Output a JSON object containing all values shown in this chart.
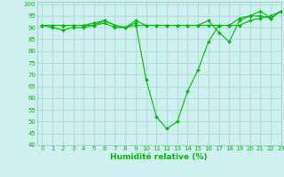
{
  "title": "",
  "xlabel": "Humidité relative (%)",
  "ylabel": "",
  "bg_color": "#cff0f0",
  "grid_color": "#aad8d8",
  "line_color": "#00bb00",
  "marker_color": "#00bb00",
  "xlim": [
    -0.5,
    23
  ],
  "ylim": [
    40,
    101
  ],
  "yticks": [
    40,
    45,
    50,
    55,
    60,
    65,
    70,
    75,
    80,
    85,
    90,
    95,
    100
  ],
  "xticks": [
    0,
    1,
    2,
    3,
    4,
    5,
    6,
    7,
    8,
    9,
    10,
    11,
    12,
    13,
    14,
    15,
    16,
    17,
    18,
    19,
    20,
    21,
    22,
    23
  ],
  "series": [
    [
      91,
      90,
      89,
      90,
      90,
      91,
      92,
      90,
      90,
      91,
      91,
      91,
      91,
      91,
      91,
      91,
      91,
      91,
      91,
      91,
      93,
      94,
      95,
      97
    ],
    [
      91,
      91,
      91,
      91,
      91,
      91,
      93,
      91,
      90,
      92,
      68,
      52,
      47,
      50,
      63,
      72,
      84,
      91,
      91,
      94,
      95,
      97,
      94,
      97
    ],
    [
      91,
      91,
      91,
      91,
      91,
      92,
      93,
      91,
      90,
      93,
      91,
      91,
      91,
      91,
      91,
      91,
      93,
      88,
      84,
      93,
      95,
      95,
      94,
      97
    ]
  ],
  "spine_color": "#99bbbb",
  "xlabel_fontsize": 6.5,
  "tick_fontsize": 5.0
}
